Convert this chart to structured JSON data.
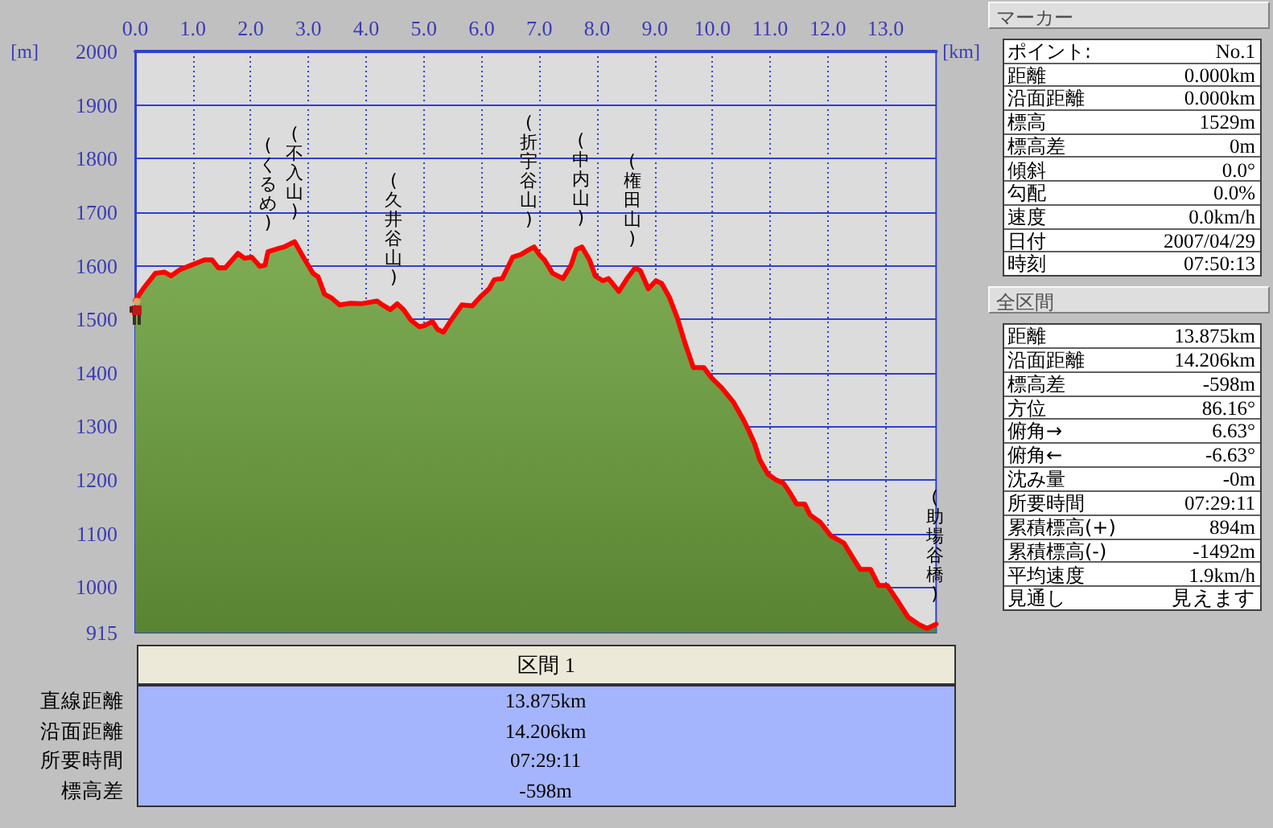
{
  "chart_data": [
    {
      "type": "area",
      "xlabel": "[km]",
      "ylabel": "[m]",
      "x": [
        0,
        0.14,
        0.35,
        0.51,
        0.62,
        0.78,
        0.97,
        1.2,
        1.33,
        1.44,
        1.56,
        1.78,
        1.89,
        2.02,
        2.16,
        2.25,
        2.3,
        2.48,
        2.58,
        2.76,
        2.94,
        3.08,
        3.17,
        3.28,
        3.4,
        3.54,
        3.73,
        3.91,
        4.19,
        4.28,
        4.42,
        4.54,
        4.65,
        4.78,
        4.92,
        5.01,
        5.15,
        5.24,
        5.34,
        5.47,
        5.66,
        5.84,
        5.98,
        6.13,
        6.22,
        6.36,
        6.45,
        6.54,
        6.68,
        6.82,
        6.91,
        7.0,
        7.09,
        7.23,
        7.41,
        7.55,
        7.64,
        7.74,
        7.87,
        7.97,
        8.1,
        8.2,
        8.38,
        8.52,
        8.66,
        8.75,
        8.89,
        9.02,
        9.12,
        9.25,
        9.39,
        9.53,
        9.67,
        9.85,
        9.99,
        10.17,
        10.36,
        10.54,
        10.63,
        10.73,
        10.82,
        10.96,
        11.09,
        11.23,
        11.32,
        11.46,
        11.6,
        11.69,
        11.87,
        12.05,
        12.28,
        12.42,
        12.56,
        12.74,
        12.88,
        13.03,
        13.21,
        13.39,
        13.58,
        13.72,
        13.875
      ],
      "series": [
        {
          "color": "#6ca13d",
          "values": [
            1535,
            1557,
            1586,
            1588,
            1581,
            1593,
            1601,
            1611,
            1611,
            1596,
            1596,
            1623,
            1614,
            1616,
            1599,
            1601,
            1626,
            1632,
            1635,
            1645,
            1611,
            1586,
            1579,
            1547,
            1540,
            1527,
            1530,
            1529,
            1534,
            1527,
            1518,
            1529,
            1518,
            1498,
            1486,
            1488,
            1496,
            1481,
            1476,
            1498,
            1527,
            1525,
            1542,
            1557,
            1574,
            1576,
            1596,
            1616,
            1621,
            1630,
            1635,
            1621,
            1611,
            1586,
            1576,
            1601,
            1630,
            1635,
            1611,
            1581,
            1572,
            1576,
            1552,
            1576,
            1596,
            1591,
            1557,
            1572,
            1567,
            1542,
            1503,
            1454,
            1410,
            1410,
            1390,
            1371,
            1346,
            1312,
            1292,
            1268,
            1238,
            1211,
            1201,
            1194,
            1180,
            1155,
            1155,
            1135,
            1121,
            1096,
            1082,
            1057,
            1033,
            1033,
            1003,
            1003,
            974,
            944,
            930,
            923,
            931
          ]
        }
      ],
      "xlim": [
        0,
        13.875
      ],
      "xticks": [
        {
          "value": 0,
          "label": "0.0"
        },
        {
          "value": 1,
          "label": "1.0"
        },
        {
          "value": 2,
          "label": "2.0"
        },
        {
          "value": 3,
          "label": "3.0"
        },
        {
          "value": 4,
          "label": "4.0"
        },
        {
          "value": 5,
          "label": "5.0"
        },
        {
          "value": 6,
          "label": "6.0"
        },
        {
          "value": 7,
          "label": "7.0"
        },
        {
          "value": 8,
          "label": "8.0"
        },
        {
          "value": 9,
          "label": "9.0"
        },
        {
          "value": 10,
          "label": "10.0"
        },
        {
          "value": 11,
          "label": "11.0"
        },
        {
          "value": 12,
          "label": "12.0"
        },
        {
          "value": 13,
          "label": "13.0"
        }
      ],
      "ylim": [
        915,
        2000
      ],
      "yticks": [
        915,
        1000,
        1100,
        1200,
        1300,
        1400,
        1500,
        1600,
        1700,
        1800,
        1900,
        2000
      ],
      "grid": true,
      "marker": "none",
      "annotations": [
        {
          "text": "(くるめ)",
          "x": 2.3,
          "y": 1626
        },
        {
          "text": "(不入山)",
          "x": 2.76,
          "y": 1645
        },
        {
          "text": "(久井谷山)",
          "x": 4.48,
          "y": 1523
        },
        {
          "text": "(折宇谷山)",
          "x": 6.82,
          "y": 1630
        },
        {
          "text": "(中内山)",
          "x": 7.72,
          "y": 1635
        },
        {
          "text": "(権田山)",
          "x": 8.61,
          "y": 1596
        },
        {
          "text": "(助場谷橋)",
          "x": 13.85,
          "y": 931
        }
      ]
    },
    {
      "type": "other",
      "title": "マーカー",
      "annotations": [
        "ポイント:",
        "No.1",
        "距離",
        "0.000km",
        "沿面距離",
        "0.000km",
        "標高",
        "1529m",
        "標高差",
        "0m",
        "傾斜",
        "0.0°",
        "勾配",
        "0.0%",
        "速度",
        "0.0km/h",
        "日付",
        "2007/04/29",
        "時刻",
        "07:50:13"
      ]
    },
    {
      "type": "other",
      "title": "全区間",
      "annotations": [
        "距離",
        "13.875km",
        "沿面距離",
        "14.206km",
        "標高差",
        "-598m",
        "方位",
        "86.16°",
        "俯角→",
        "6.63°",
        "俯角←",
        "-6.63°",
        "沈み量",
        "-0m",
        "所要時間",
        "07:29:11",
        "累積標高(+)",
        "894m",
        "累積標高(-)",
        "-1492m",
        "平均速度",
        "1.9km/h",
        "見通し",
        "見えます"
      ]
    },
    {
      "type": "other",
      "title": "区間 1",
      "annotations": [
        "直線距離",
        "13.875km",
        "沿面距離",
        "14.206km",
        "所要時間",
        "07:29:11",
        "標高差",
        "-598m"
      ]
    }
  ]
}
